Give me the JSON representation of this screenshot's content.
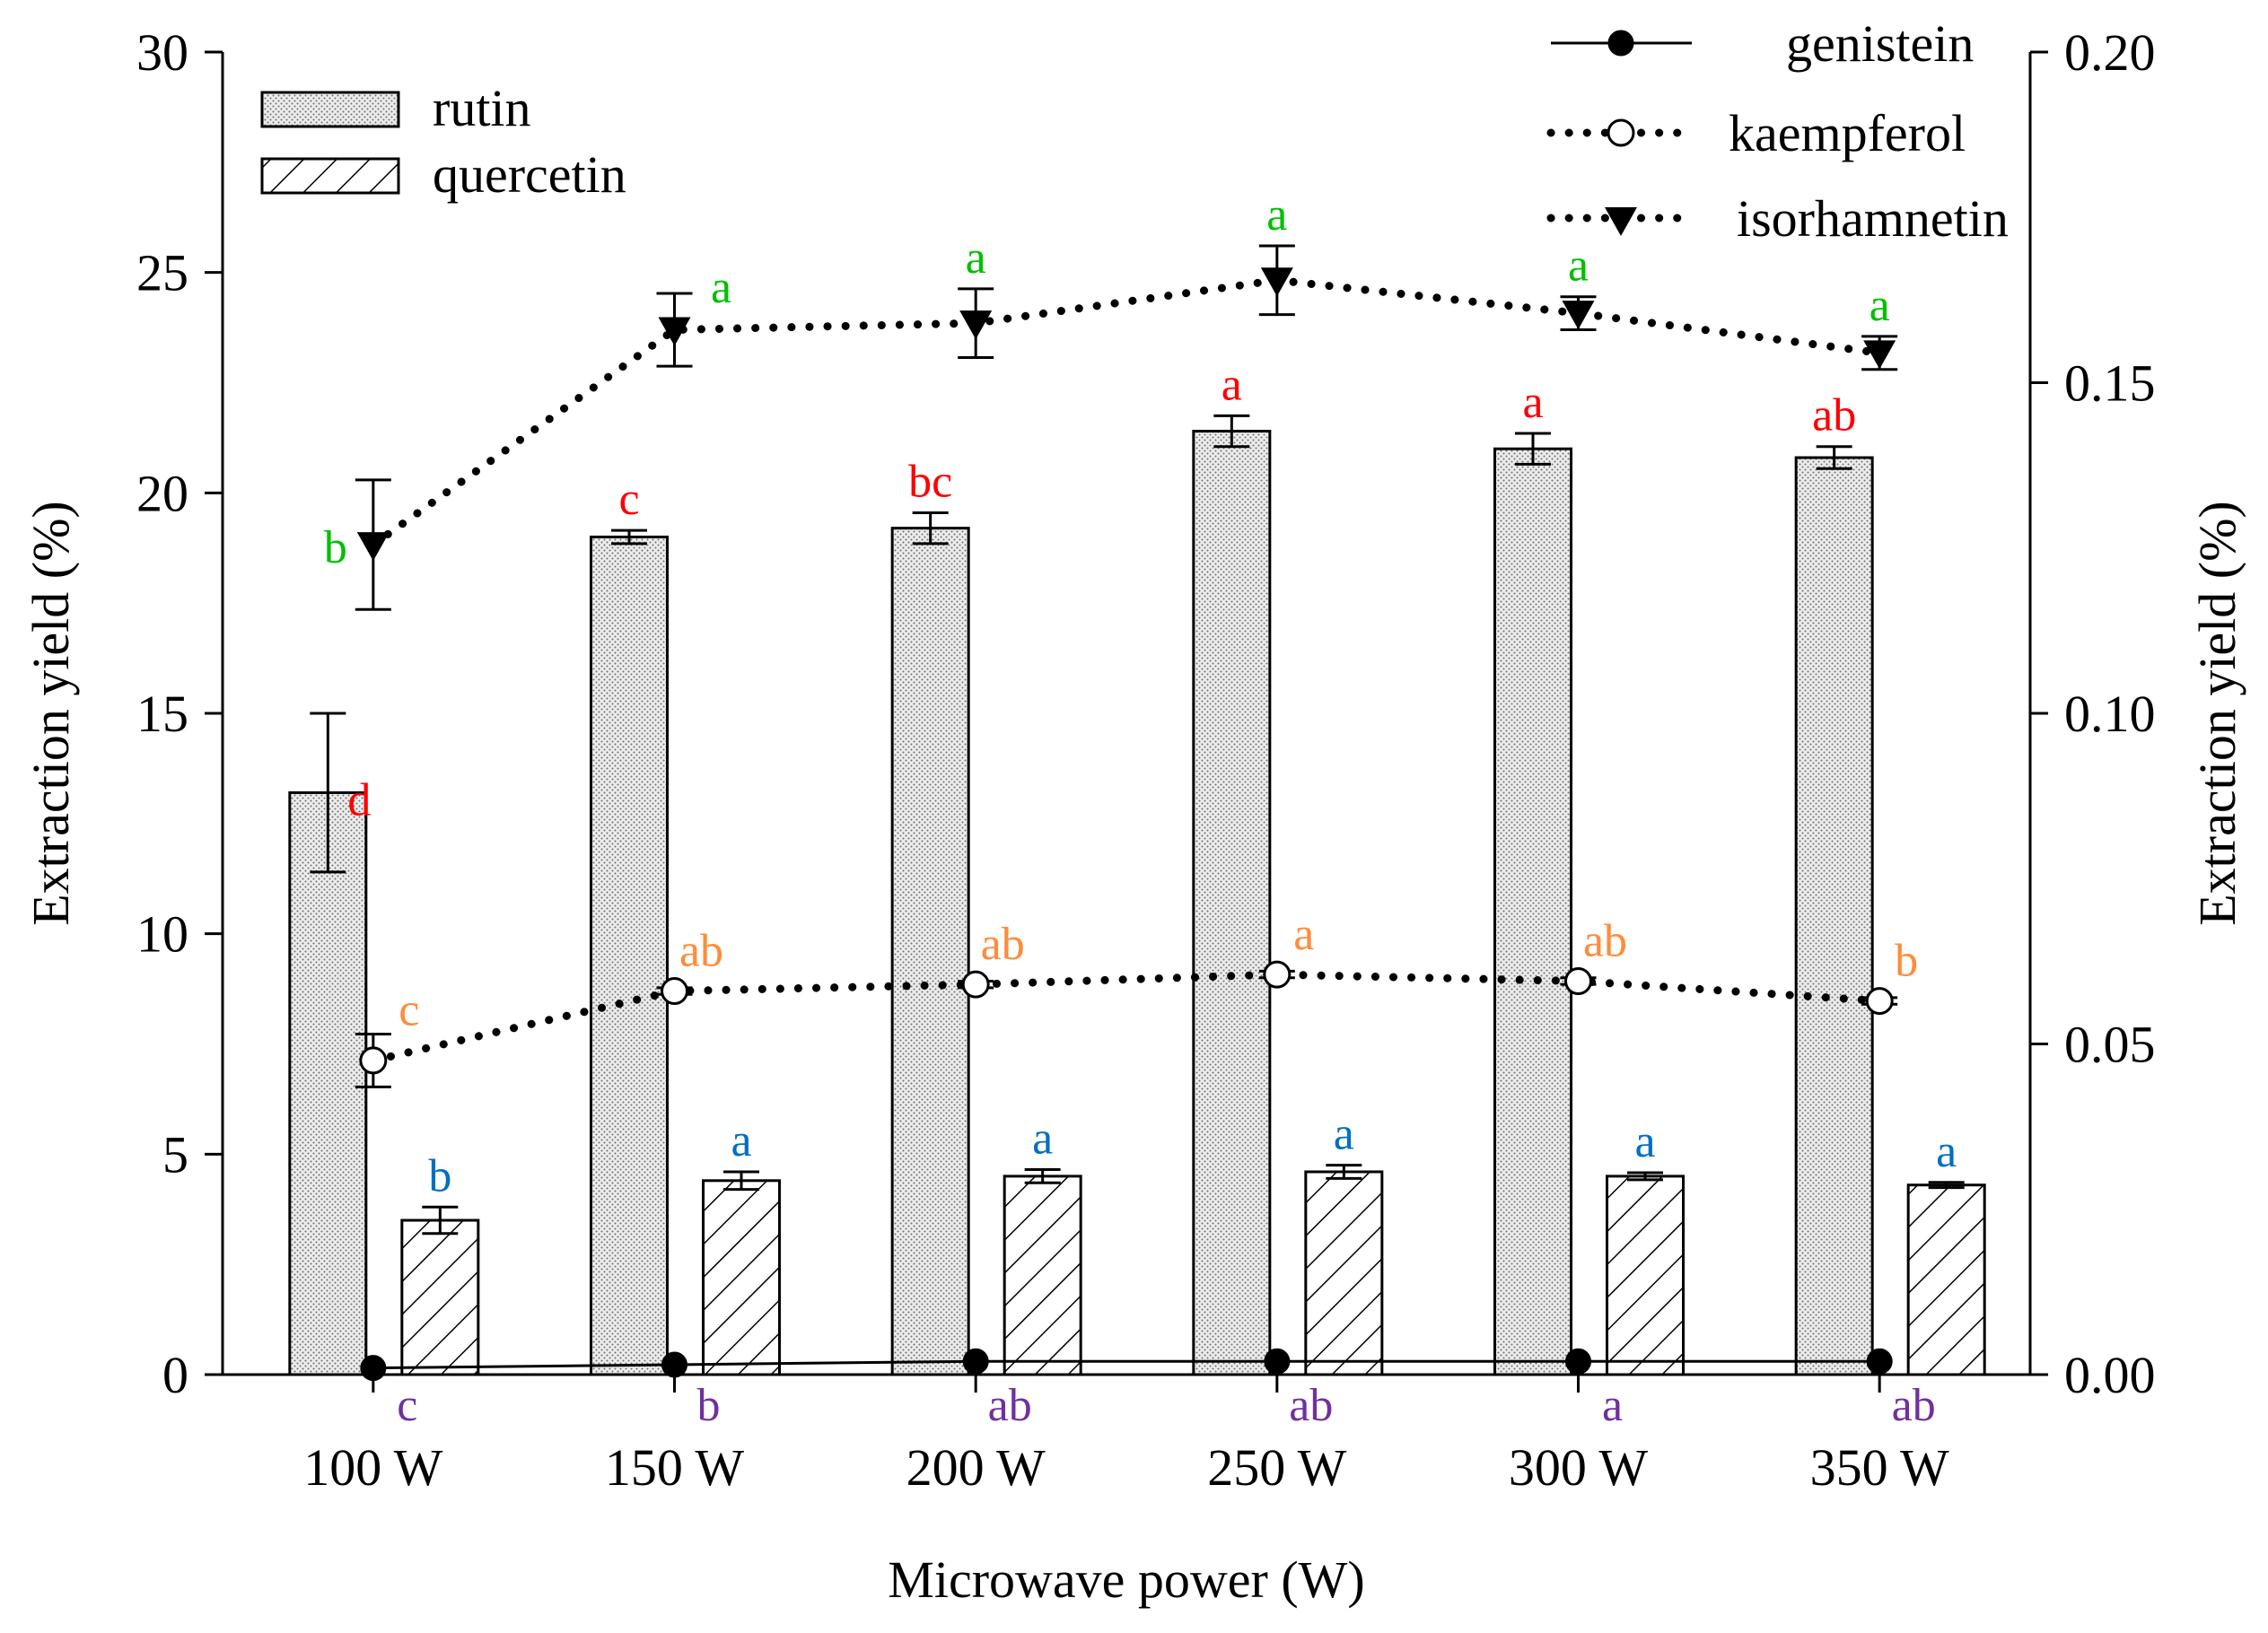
{
  "chart_data": {
    "type": "bar+line",
    "categories": [
      "100 W",
      "150 W",
      "200 W",
      "250 W",
      "300 W",
      "350 W"
    ],
    "xlabel": "Microwave power (W)",
    "ylabel_left": "Extraction yield (%)",
    "ylabel_right": "Extraction yield (%)",
    "ylim_left": [
      0,
      30
    ],
    "ylim_right": [
      0,
      0.2
    ],
    "yticks_left": [
      "0",
      "5",
      "10",
      "15",
      "20",
      "25",
      "30"
    ],
    "yticks_right": [
      "0.00",
      "0.05",
      "0.10",
      "0.15",
      "0.20"
    ],
    "bar_series": [
      {
        "name": "rutin",
        "pattern": "dotted",
        "axis": "left",
        "values": [
          13.2,
          19.0,
          19.2,
          21.4,
          21.0,
          20.8
        ],
        "errors": [
          1.8,
          0.15,
          0.35,
          0.35,
          0.35,
          0.25
        ],
        "letters": [
          "d",
          "c",
          "bc",
          "a",
          "a",
          "ab"
        ],
        "letter_color": "#ff0000"
      },
      {
        "name": "quercetin",
        "pattern": "hatched",
        "axis": "left",
        "values": [
          3.5,
          4.4,
          4.5,
          4.6,
          4.5,
          4.3
        ],
        "errors": [
          0.3,
          0.2,
          0.15,
          0.15,
          0.08,
          0.06
        ],
        "letters": [
          "b",
          "a",
          "a",
          "a",
          "a",
          "a"
        ],
        "letter_color": "#0070c0"
      }
    ],
    "line_series": [
      {
        "name": "genistein",
        "axis": "right",
        "marker": "filled-circle",
        "linestyle": "solid",
        "values": [
          0.001,
          0.0015,
          0.002,
          0.002,
          0.002,
          0.002
        ],
        "errors": [
          0,
          0,
          0,
          0,
          0,
          0
        ],
        "letters": [
          "c",
          "b",
          "ab",
          "ab",
          "a",
          "ab"
        ],
        "letter_color": "#7030a0"
      },
      {
        "name": "kaempferol",
        "axis": "right",
        "marker": "open-circle",
        "linestyle": "dotted",
        "values": [
          0.0475,
          0.058,
          0.059,
          0.0605,
          0.0595,
          0.0565
        ],
        "errors": [
          0.004,
          0.0005,
          0.0005,
          0.0005,
          0.0005,
          0.0005
        ],
        "letters": [
          "c",
          "ab",
          "ab",
          "a",
          "ab",
          "b"
        ],
        "letter_color": "#ff8c3a"
      },
      {
        "name": "isorhamnetin",
        "axis": "right",
        "marker": "filled-triangle-down",
        "linestyle": "dotted",
        "values": [
          0.1255,
          0.158,
          0.159,
          0.1655,
          0.1605,
          0.1545
        ],
        "errors": [
          0.0098,
          0.0055,
          0.0052,
          0.0052,
          0.0025,
          0.0025
        ],
        "letters": [
          "b",
          "a",
          "a",
          "a",
          "a",
          "a"
        ],
        "letter_color": "#00c000"
      }
    ],
    "legend_left": [
      "rutin",
      "quercetin"
    ],
    "legend_right": [
      "genistein",
      "kaempferol",
      "isorhamnetin"
    ]
  }
}
